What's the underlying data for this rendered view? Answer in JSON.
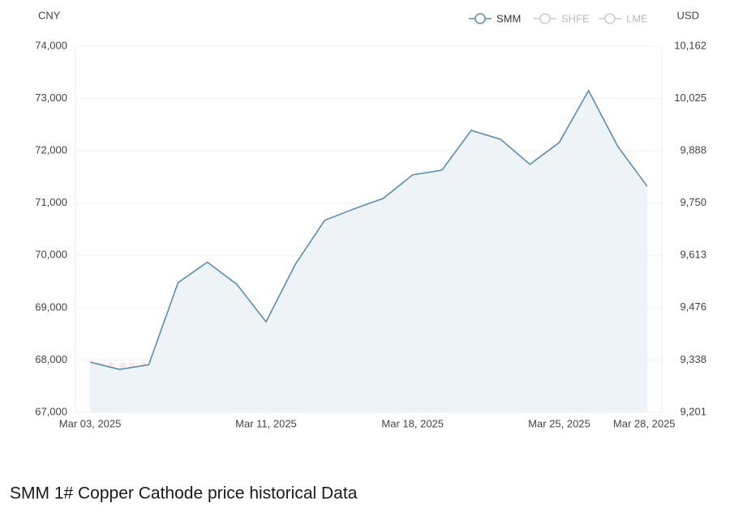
{
  "chart_data": {
    "type": "area",
    "title": "SMM 1# Copper Cathode price historical Data",
    "y_axis_label": "CNY",
    "y2_axis_label": "USD",
    "watermark": [
      "SMM",
      "metal.com"
    ],
    "categories": [
      "Mar 03, 2025",
      null,
      null,
      null,
      null,
      null,
      "Mar 11, 2025",
      null,
      null,
      null,
      null,
      "Mar 18, 2025",
      null,
      null,
      null,
      null,
      "Mar 25, 2025",
      null,
      null,
      "Mar 28, 2025"
    ],
    "series": [
      {
        "name": "SMM",
        "color": "#5b8db0",
        "fill": "#edf3f7",
        "values": [
          67960,
          67820,
          67910,
          69480,
          69870,
          69450,
          68730,
          69830,
          70670,
          70890,
          71090,
          71540,
          71630,
          72390,
          72220,
          71740,
          72160,
          73150,
          72080,
          71320
        ]
      }
    ],
    "inactive_series": [
      "SHFE",
      "LME"
    ],
    "ylim": [
      67000,
      74000
    ],
    "yticks": [
      {
        "value": 67000,
        "label": "67,000"
      },
      {
        "value": 68000,
        "label": "68,000"
      },
      {
        "value": 69000,
        "label": "69,000"
      },
      {
        "value": 70000,
        "label": "70,000"
      },
      {
        "value": 71000,
        "label": "71,000"
      },
      {
        "value": 72000,
        "label": "72,000"
      },
      {
        "value": 73000,
        "label": "73,000"
      },
      {
        "value": 74000,
        "label": "74,000"
      }
    ],
    "y2lim": [
      9201,
      10162
    ],
    "y2ticks": [
      {
        "value": 9201,
        "label": "9,201"
      },
      {
        "value": 9338,
        "label": "9,338"
      },
      {
        "value": 9476,
        "label": "9,476"
      },
      {
        "value": 9613,
        "label": "9,613"
      },
      {
        "value": 9750,
        "label": "9,750"
      },
      {
        "value": 9888,
        "label": "9,888"
      },
      {
        "value": 10025,
        "label": "10,025"
      },
      {
        "value": 10162,
        "label": "10,162"
      }
    ],
    "grid": true
  }
}
